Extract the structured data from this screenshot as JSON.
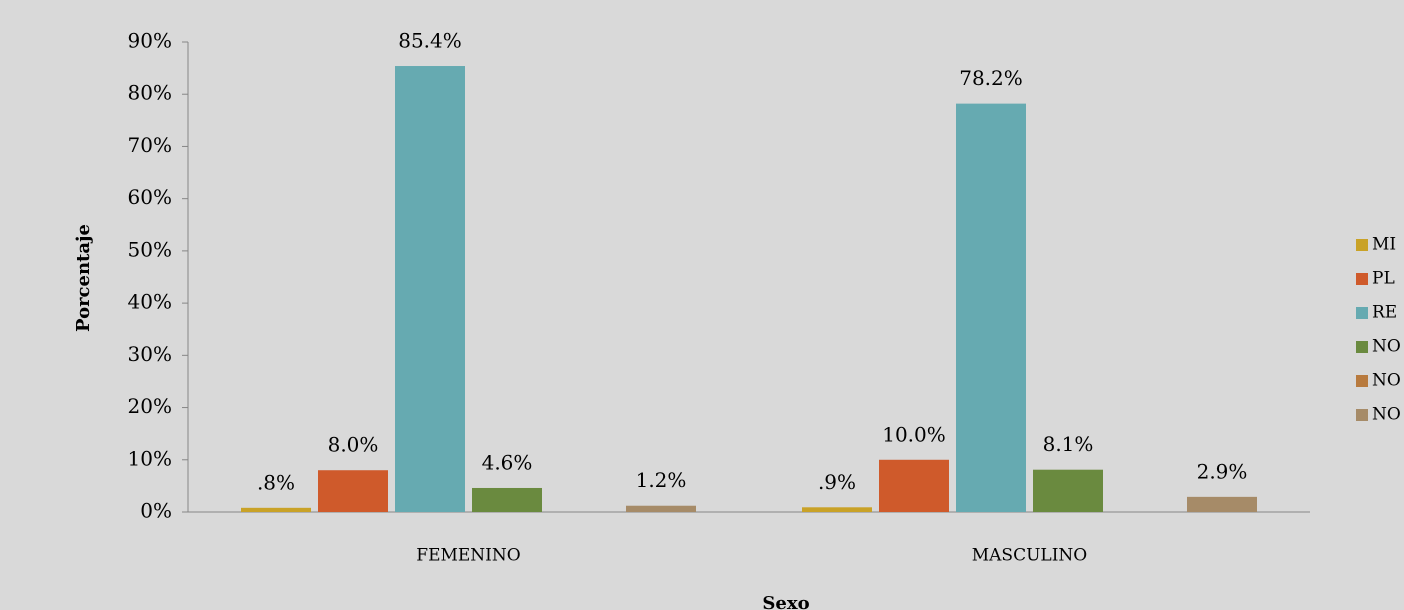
{
  "chart_data": {
    "type": "bar",
    "ylabel": "Porcentaje",
    "xlabel": "Sexo",
    "categories": [
      "FEMENINO",
      "MASCULINO"
    ],
    "series": [
      {
        "name": "MI",
        "color": "#c9a227",
        "values": [
          0.8,
          0.9
        ],
        "value_labels": [
          ".8%",
          ".9%"
        ]
      },
      {
        "name": "PL",
        "color": "#cf5a2b",
        "values": [
          8.0,
          10.0
        ],
        "value_labels": [
          "8.0%",
          "10.0%"
        ]
      },
      {
        "name": "RE",
        "color": "#66aab1",
        "values": [
          85.4,
          78.2
        ],
        "value_labels": [
          "85.4%",
          "78.2%"
        ]
      },
      {
        "name": "NO",
        "color": "#6a8a3f",
        "values": [
          4.6,
          8.1
        ],
        "value_labels": [
          "4.6%",
          "8.1%"
        ]
      },
      {
        "name": "NO",
        "color": "#b87a3e",
        "values": [
          null,
          null
        ],
        "value_labels": [
          null,
          null
        ]
      },
      {
        "name": "NO",
        "color": "#a68b68",
        "values": [
          1.2,
          2.9
        ],
        "value_labels": [
          "1.2%",
          "2.9%"
        ]
      }
    ],
    "ylim": [
      0,
      90
    ],
    "yticks": [
      {
        "value": 0,
        "label": "0%"
      },
      {
        "value": 10,
        "label": "10%"
      },
      {
        "value": 20,
        "label": "20%"
      },
      {
        "value": 30,
        "label": "30%"
      },
      {
        "value": 40,
        "label": "40%"
      },
      {
        "value": 50,
        "label": "50%"
      },
      {
        "value": 60,
        "label": "60%"
      },
      {
        "value": 70,
        "label": "70%"
      },
      {
        "value": 80,
        "label": "80%"
      },
      {
        "value": 90,
        "label": "90%"
      }
    ],
    "legend": "right"
  }
}
